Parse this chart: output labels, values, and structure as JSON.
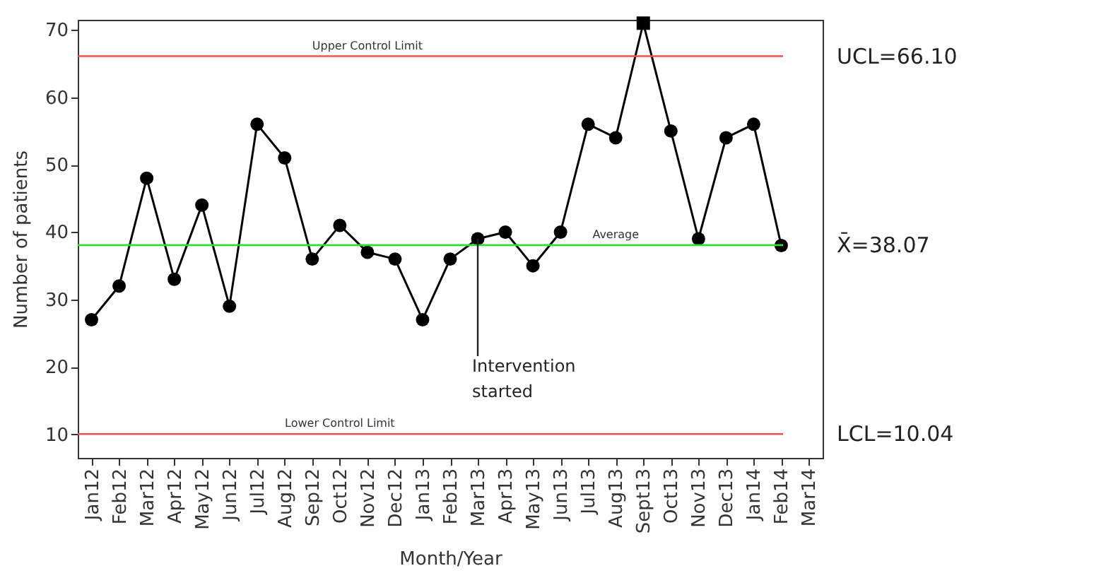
{
  "chart_data": {
    "type": "line",
    "xlabel": "Month/Year",
    "ylabel": "Number of patients",
    "categories": [
      "Jan12",
      "Feb12",
      "Mar12",
      "Apr12",
      "May12",
      "Jun12",
      "Jul12",
      "Aug12",
      "Sep12",
      "Oct12",
      "Nov12",
      "Dec12",
      "Jan13",
      "Feb13",
      "Mar13",
      "Apr13",
      "May13",
      "Jun13",
      "Jul13",
      "Aug13",
      "Sept13",
      "Oct13",
      "Nov13",
      "Dec13",
      "Jan14",
      "Feb14",
      "Mar14"
    ],
    "series": [
      {
        "color": "#000000",
        "marker": "none",
        "values": [
          27,
          32,
          48,
          33,
          44,
          29,
          56,
          51,
          36,
          41,
          37,
          36,
          27,
          36,
          39,
          40,
          35,
          40,
          56,
          54,
          71,
          55,
          39,
          54,
          56,
          38,
          null
        ]
      },
      {
        "type": "scatter",
        "color": "#000000",
        "marker": "circle",
        "values": [
          27,
          32,
          48,
          33,
          44,
          29,
          56,
          51,
          36,
          41,
          37,
          36,
          27,
          36,
          39,
          40,
          35,
          40,
          56,
          54,
          null,
          55,
          39,
          54,
          56,
          38,
          null
        ]
      },
      {
        "type": "scatter",
        "color": "#000000",
        "marker": "square",
        "values": [
          null,
          null,
          null,
          null,
          null,
          null,
          null,
          null,
          null,
          null,
          null,
          null,
          null,
          null,
          null,
          null,
          null,
          null,
          null,
          null,
          71,
          null,
          null,
          null,
          null,
          null,
          null
        ]
      }
    ],
    "ylim": [
      6.5,
      71.5
    ],
    "yticks": [
      10,
      20,
      30,
      40,
      50,
      60,
      70
    ],
    "grid": false,
    "ref_lines": [
      {
        "axis": "y",
        "value": 66.1,
        "label": "UCL=66.10",
        "color": "#f05050"
      },
      {
        "axis": "y",
        "value": 38.07,
        "label": "X̄=38.07",
        "color": "#33dd33"
      },
      {
        "axis": "y",
        "value": 10.04,
        "label": "LCL=10.04",
        "color": "#f05050"
      }
    ],
    "annotations": [
      {
        "text": "Upper Control Limit",
        "x": "Nov12",
        "y": 66.1
      },
      {
        "text": "Average",
        "x": "Aug13",
        "y": 38.07
      },
      {
        "text": "Lower Control Limit",
        "x": "Oct12",
        "y": 10.04
      },
      {
        "text": "Intervention\nstarted",
        "x": "Mar13",
        "y": 39
      }
    ]
  }
}
